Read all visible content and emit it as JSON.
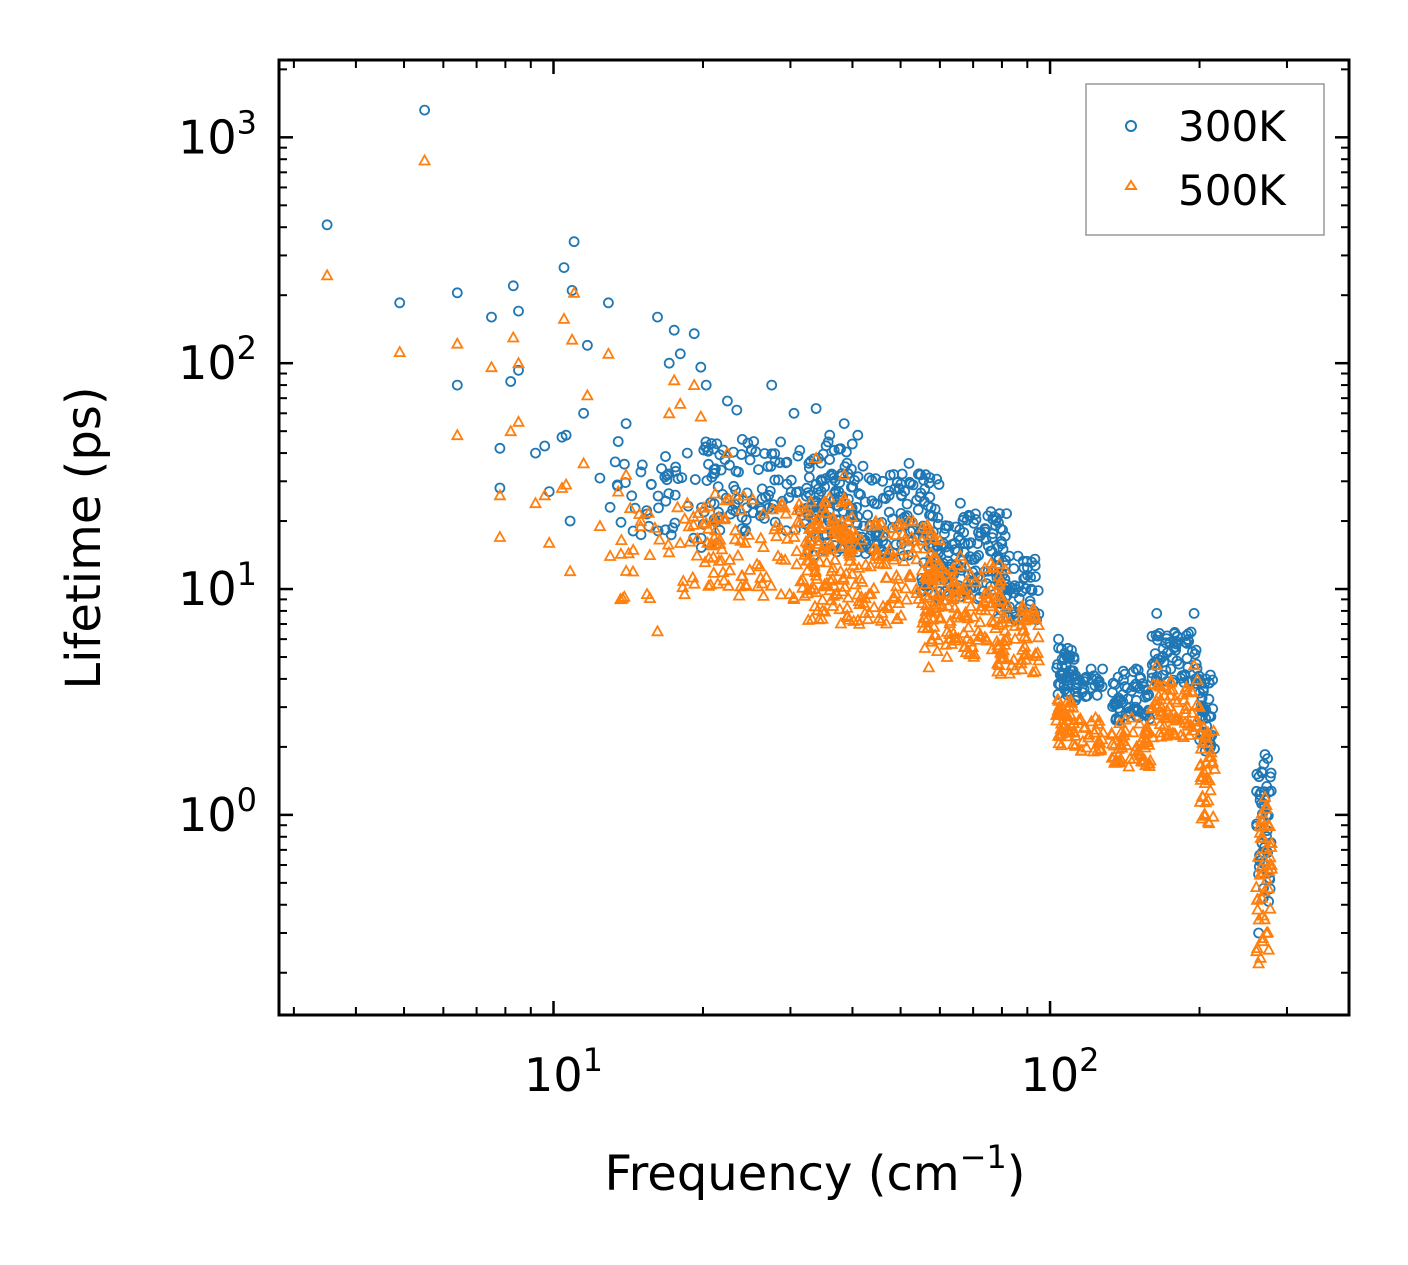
{
  "chart_data": {
    "type": "scatter",
    "xscale": "log",
    "yscale": "log",
    "xlim": [
      2.8,
      400
    ],
    "ylim": [
      0.13,
      2200
    ],
    "xlabel": "Frequency (cm",
    "xlabel_sup": "−1",
    "xlabel_close": ")",
    "ylabel": "Lifetime (ps)",
    "x_ticks": [
      {
        "value": 10,
        "base": "10",
        "exp": "1"
      },
      {
        "value": 100,
        "base": "10",
        "exp": "2"
      }
    ],
    "y_ticks": [
      {
        "value": 1,
        "base": "10",
        "exp": "0"
      },
      {
        "value": 10,
        "base": "10",
        "exp": "1"
      },
      {
        "value": 100,
        "base": "10",
        "exp": "2"
      },
      {
        "value": 1000,
        "base": "10",
        "exp": "3"
      }
    ],
    "legend_position": "top-right",
    "series": [
      {
        "name": "300K",
        "marker": "circle",
        "color": "#1f77b4",
        "points": [
          [
            3.5,
            410
          ],
          [
            4.9,
            185
          ],
          [
            5.5,
            1320
          ],
          [
            6.4,
            205
          ],
          [
            6.4,
            80
          ],
          [
            7.5,
            160
          ],
          [
            7.8,
            42
          ],
          [
            7.8,
            28
          ],
          [
            8.2,
            83
          ],
          [
            8.3,
            220
          ],
          [
            8.5,
            170
          ],
          [
            8.5,
            93
          ],
          [
            9.2,
            40
          ],
          [
            9.6,
            43
          ],
          [
            9.8,
            27
          ],
          [
            10.4,
            47
          ],
          [
            10.5,
            265
          ],
          [
            10.6,
            48
          ],
          [
            10.8,
            20
          ],
          [
            10.9,
            210
          ],
          [
            11.0,
            345
          ],
          [
            11.5,
            60
          ],
          [
            11.7,
            120
          ],
          [
            12.4,
            31
          ],
          [
            12.9,
            185
          ],
          [
            13.0,
            23
          ],
          [
            13.5,
            45
          ],
          [
            14.0,
            54
          ],
          [
            15.0,
            33
          ],
          [
            16.2,
            160
          ],
          [
            17.1,
            100
          ],
          [
            17.5,
            140
          ],
          [
            18.0,
            110
          ],
          [
            18.6,
            40
          ],
          [
            19.2,
            135
          ],
          [
            19.8,
            96
          ],
          [
            20.3,
            80
          ],
          [
            22.4,
            68
          ],
          [
            23.4,
            62
          ],
          [
            24.0,
            46
          ],
          [
            25.3,
            45
          ],
          [
            27.5,
            80
          ],
          [
            30.5,
            60
          ],
          [
            33.8,
            63
          ],
          [
            36.0,
            48
          ],
          [
            38.5,
            54
          ],
          [
            41.0,
            48
          ],
          [
            42.0,
            35
          ],
          [
            46.0,
            30
          ],
          [
            52.0,
            36
          ],
          [
            66.0,
            24
          ],
          [
            69.0,
            21
          ],
          [
            76.0,
            22
          ],
          [
            104.0,
            6
          ],
          [
            107.0,
            5.2
          ],
          [
            135.0,
            3.1
          ],
          [
            164.0,
            7.8
          ],
          [
            195.0,
            7.8
          ],
          [
            206.0,
            4.0
          ],
          [
            271.0,
            1.85
          ],
          [
            263.0,
            0.3
          ]
        ],
        "clusters": [
          {
            "x": [
              13,
              22
            ],
            "y": [
              15,
              40
            ],
            "n": 45
          },
          {
            "x": [
              20,
              40
            ],
            "y": [
              18,
              45
            ],
            "n": 140
          },
          {
            "x": [
              32,
              60
            ],
            "y": [
              14,
              33
            ],
            "n": 190
          },
          {
            "x": [
              55,
              82
            ],
            "y": [
              9,
              22
            ],
            "n": 150
          },
          {
            "x": [
              78,
              95
            ],
            "y": [
              7,
              14
            ],
            "n": 60
          },
          {
            "x": [
              103,
              112
            ],
            "y": [
              3.4,
              5.5
            ],
            "n": 40
          },
          {
            "x": [
              112,
              128
            ],
            "y": [
              3.2,
              4.5
            ],
            "n": 30
          },
          {
            "x": [
              133,
              160
            ],
            "y": [
              2.6,
              4.5
            ],
            "n": 60
          },
          {
            "x": [
              160,
              200
            ],
            "y": [
              3.8,
              6.5
            ],
            "n": 70
          },
          {
            "x": [
              200,
              215
            ],
            "y": [
              1.8,
              4.2
            ],
            "n": 40
          },
          {
            "x": [
              260,
              280
            ],
            "y": [
              0.4,
              1.8
            ],
            "n": 45
          }
        ]
      },
      {
        "name": "500K",
        "marker": "triangle",
        "color": "#ff7f0e",
        "points": [
          [
            3.5,
            245
          ],
          [
            4.9,
            112
          ],
          [
            5.5,
            790
          ],
          [
            6.4,
            122
          ],
          [
            6.4,
            48
          ],
          [
            7.5,
            96
          ],
          [
            7.8,
            26
          ],
          [
            7.8,
            17
          ],
          [
            8.2,
            50
          ],
          [
            8.3,
            130
          ],
          [
            8.5,
            100
          ],
          [
            8.5,
            55
          ],
          [
            9.2,
            24
          ],
          [
            9.6,
            26
          ],
          [
            9.8,
            16
          ],
          [
            10.4,
            28
          ],
          [
            10.5,
            157
          ],
          [
            10.6,
            29
          ],
          [
            10.8,
            12
          ],
          [
            10.9,
            127
          ],
          [
            11.0,
            205
          ],
          [
            11.5,
            36
          ],
          [
            11.7,
            72
          ],
          [
            12.4,
            19
          ],
          [
            12.9,
            110
          ],
          [
            13.0,
            14
          ],
          [
            13.5,
            27
          ],
          [
            14.0,
            32
          ],
          [
            15.0,
            20
          ],
          [
            16.2,
            6.5
          ],
          [
            17.1,
            60
          ],
          [
            17.5,
            84
          ],
          [
            18.0,
            66
          ],
          [
            18.6,
            24
          ],
          [
            19.2,
            80
          ],
          [
            19.8,
            58
          ],
          [
            22.4,
            40
          ],
          [
            33.8,
            38
          ],
          [
            38.5,
            32
          ],
          [
            52.0,
            20
          ],
          [
            66.0,
            14
          ],
          [
            76.0,
            13
          ],
          [
            104.0,
            3.2
          ],
          [
            107.0,
            2.8
          ],
          [
            135.0,
            1.7
          ],
          [
            164.0,
            4.6
          ],
          [
            195.0,
            4.6
          ],
          [
            206.0,
            2.2
          ],
          [
            271.0,
            1.2
          ],
          [
            263.0,
            0.22
          ],
          [
            57.0,
            4.5
          ],
          [
            62.0,
            5.0
          ]
        ],
        "clusters": [
          {
            "x": [
              13,
              22
            ],
            "y": [
              9,
              24
            ],
            "n": 45
          },
          {
            "x": [
              20,
              40
            ],
            "y": [
              9,
              27
            ],
            "n": 140
          },
          {
            "x": [
              32,
              60
            ],
            "y": [
              7,
              20
            ],
            "n": 190
          },
          {
            "x": [
              55,
              82
            ],
            "y": [
              5,
              13
            ],
            "n": 150
          },
          {
            "x": [
              78,
              95
            ],
            "y": [
              4.2,
              8.5
            ],
            "n": 60
          },
          {
            "x": [
              103,
              112
            ],
            "y": [
              2.0,
              3.3
            ],
            "n": 40
          },
          {
            "x": [
              112,
              128
            ],
            "y": [
              1.9,
              2.7
            ],
            "n": 30
          },
          {
            "x": [
              133,
              160
            ],
            "y": [
              1.6,
              2.7
            ],
            "n": 60
          },
          {
            "x": [
              160,
              200
            ],
            "y": [
              2.2,
              4.0
            ],
            "n": 70
          },
          {
            "x": [
              200,
              215
            ],
            "y": [
              0.9,
              2.5
            ],
            "n": 40
          },
          {
            "x": [
              260,
              280
            ],
            "y": [
              0.22,
              1.2
            ],
            "n": 45
          }
        ]
      }
    ]
  }
}
